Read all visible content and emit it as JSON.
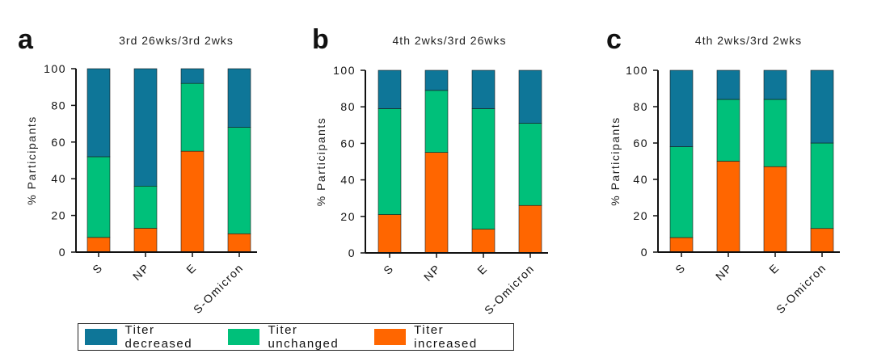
{
  "chart_data": [
    {
      "type": "bar",
      "stacked": true,
      "panel_label": "a",
      "title": "3rd 26wks/3rd 2wks",
      "ylabel": "% Participants",
      "xlabel": "",
      "ylim": [
        0,
        100
      ],
      "yticks": [
        "0",
        "20",
        "40",
        "60",
        "80",
        "100"
      ],
      "categories": [
        "S",
        "NP",
        "E",
        "S-Omicron"
      ],
      "series": [
        {
          "name": "Titer increased",
          "values": [
            8,
            13,
            55,
            10
          ]
        },
        {
          "name": "Titer unchanged",
          "values": [
            44,
            23,
            37,
            58
          ]
        },
        {
          "name": "Titer decreased",
          "values": [
            48,
            64,
            8,
            32
          ]
        }
      ]
    },
    {
      "type": "bar",
      "stacked": true,
      "panel_label": "b",
      "title": "4th 2wks/3rd 26wks",
      "ylabel": "% Participants",
      "xlabel": "",
      "ylim": [
        0,
        100
      ],
      "yticks": [
        "0",
        "20",
        "40",
        "60",
        "80",
        "100"
      ],
      "categories": [
        "S",
        "NP",
        "E",
        "S-Omicron"
      ],
      "series": [
        {
          "name": "Titer increased",
          "values": [
            21,
            55,
            13,
            26
          ]
        },
        {
          "name": "Titer unchanged",
          "values": [
            58,
            34,
            66,
            45
          ]
        },
        {
          "name": "Titer decreased",
          "values": [
            21,
            11,
            21,
            29
          ]
        }
      ]
    },
    {
      "type": "bar",
      "stacked": true,
      "panel_label": "c",
      "title": "4th 2wks/3rd 2wks",
      "ylabel": "% Participants",
      "xlabel": "",
      "ylim": [
        0,
        100
      ],
      "yticks": [
        "0",
        "20",
        "40",
        "60",
        "80",
        "100"
      ],
      "categories": [
        "S",
        "NP",
        "E",
        "S-Omicron"
      ],
      "series": [
        {
          "name": "Titer increased",
          "values": [
            8,
            50,
            47,
            13
          ]
        },
        {
          "name": "Titer unchanged",
          "values": [
            50,
            34,
            37,
            47
          ]
        },
        {
          "name": "Titer decreased",
          "values": [
            42,
            16,
            16,
            40
          ]
        }
      ]
    }
  ],
  "legend": {
    "items": [
      {
        "label": "Titer decreased",
        "color": "#0e7698"
      },
      {
        "label": "Titer unchanged",
        "color": "#00c07a"
      },
      {
        "label": "Titer increased",
        "color": "#ff6600"
      }
    ]
  },
  "colors": {
    "Titer decreased": "#0e7698",
    "Titer unchanged": "#00c07a",
    "Titer increased": "#ff6600"
  }
}
